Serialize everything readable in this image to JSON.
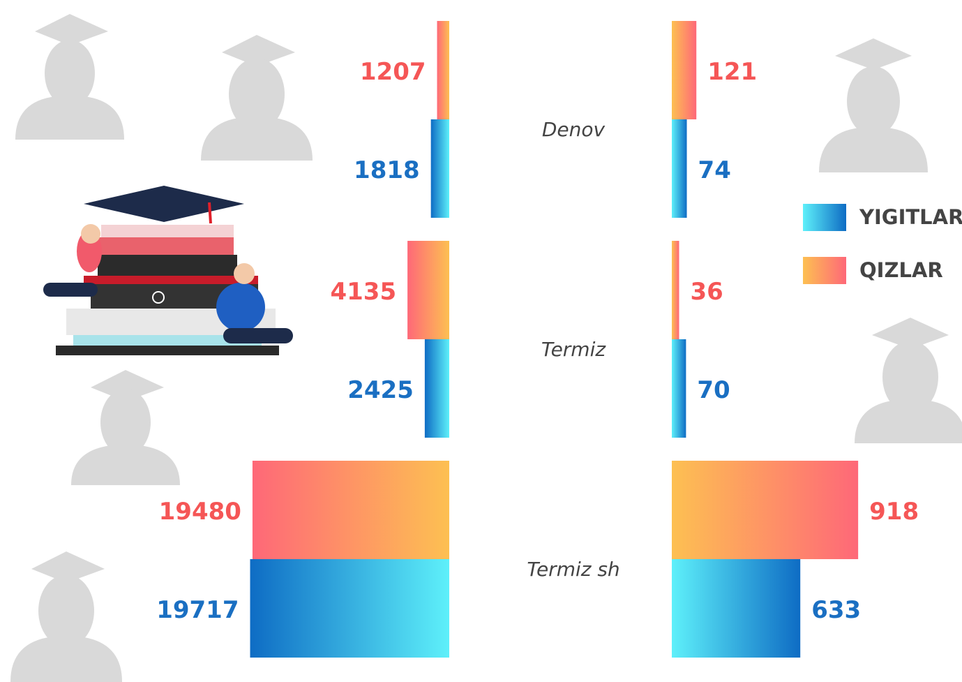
{
  "chart_data": {
    "type": "butterfly",
    "categories": [
      "Denov",
      "Termiz",
      "Termiz sh"
    ],
    "left": {
      "xlim": [
        0,
        25000
      ],
      "series": [
        {
          "name": "QIZLAR",
          "colors": [
            "#fdc052",
            "#fe6878"
          ],
          "label_color": "#f55656",
          "values": [
            1207,
            4135,
            19480
          ]
        },
        {
          "name": "YIGITLAR",
          "colors": [
            "#5ef0fa",
            "#0e6cc4"
          ],
          "label_color": "#1a6fc2",
          "values": [
            1818,
            2425,
            19717
          ]
        }
      ]
    },
    "right": {
      "xlim": [
        0,
        1000
      ],
      "series": [
        {
          "colors": [
            "#fdc052",
            "#fe6878"
          ],
          "label_color": "#f55656",
          "values": [
            121,
            36,
            918
          ]
        },
        {
          "colors": [
            "#5ef0fa",
            "#0e6cc4"
          ],
          "label_color": "#1a6fc2",
          "values": [
            74,
            70,
            633
          ]
        }
      ]
    }
  }
}
